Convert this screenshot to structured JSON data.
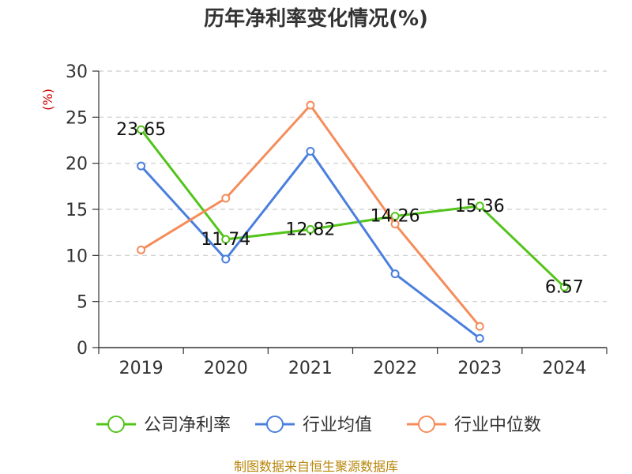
{
  "chart_data": {
    "type": "line",
    "title": "历年净利率变化情况(%)",
    "ylabel": "(%)",
    "categories": [
      "2019",
      "2020",
      "2021",
      "2022",
      "2023",
      "2024"
    ],
    "ylim": [
      0,
      30
    ],
    "yticks": [
      0,
      5,
      10,
      15,
      20,
      25,
      30
    ],
    "grid": true,
    "legend_position": "bottom",
    "series": [
      {
        "name": "公司净利率",
        "color": "#52c41a",
        "values": [
          23.65,
          11.74,
          12.82,
          14.26,
          15.36,
          6.57
        ],
        "labels": [
          "23.65",
          "11.74",
          "12.82",
          "14.26",
          "15.36",
          "6.57"
        ]
      },
      {
        "name": "行业均值",
        "color": "#4a7fdd",
        "values": [
          19.7,
          9.6,
          21.3,
          8.0,
          1.0,
          null
        ]
      },
      {
        "name": "行业中位数",
        "color": "#f58c5a",
        "values": [
          10.6,
          16.2,
          26.3,
          13.4,
          2.3,
          null
        ]
      }
    ]
  },
  "source": "制图数据来自恒生聚源数据库"
}
